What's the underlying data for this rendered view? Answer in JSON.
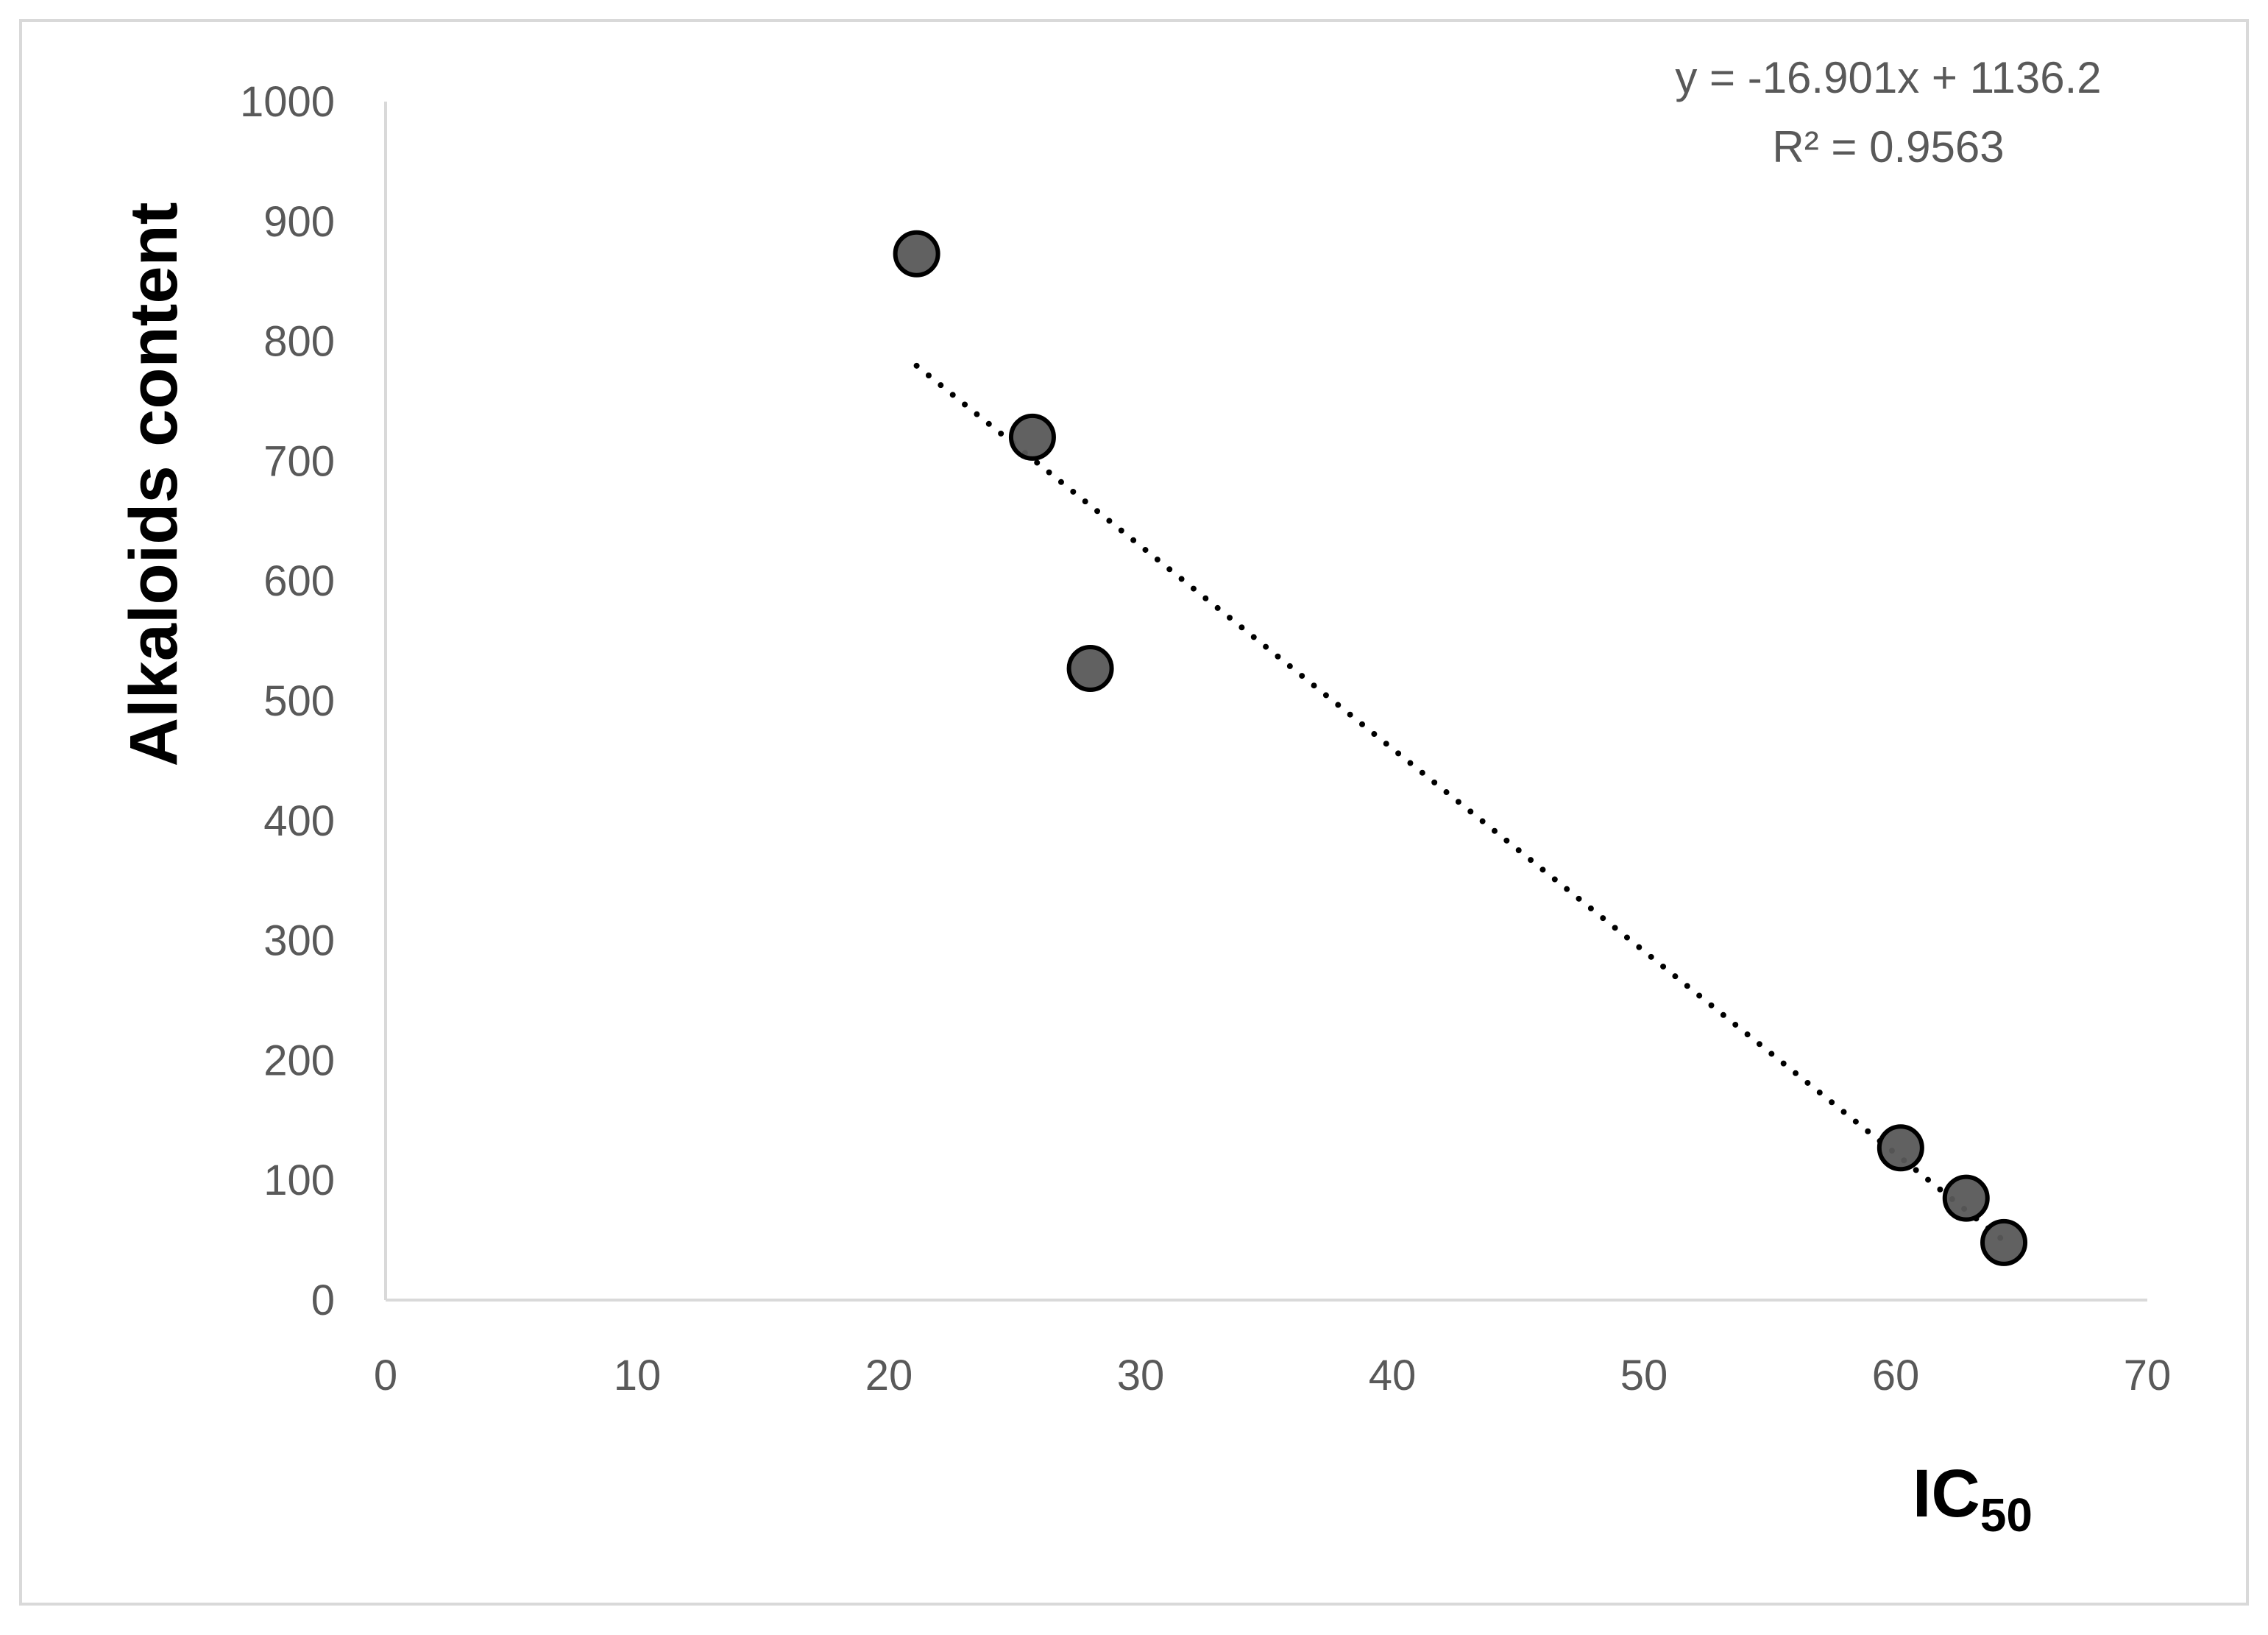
{
  "chart_data": {
    "type": "scatter",
    "xlabel_main": "IC",
    "xlabel_sub": "50",
    "ylabel": "Alkaloids content",
    "xlim": [
      0,
      70
    ],
    "ylim": [
      0,
      1000
    ],
    "xticks": [
      0,
      10,
      20,
      30,
      40,
      50,
      60,
      70
    ],
    "yticks": [
      0,
      100,
      200,
      300,
      400,
      500,
      600,
      700,
      800,
      900,
      1000
    ],
    "grid": false,
    "points": [
      {
        "x": 21.1,
        "y": 873
      },
      {
        "x": 25.7,
        "y": 720
      },
      {
        "x": 28.0,
        "y": 527
      },
      {
        "x": 60.2,
        "y": 127
      },
      {
        "x": 62.8,
        "y": 85
      },
      {
        "x": 64.3,
        "y": 48
      }
    ],
    "trendline": {
      "type": "linear",
      "slope": -16.901,
      "intercept": 1136.2,
      "x_range": [
        21.1,
        64.3
      ],
      "style": "dotted",
      "equation_text": "y = -16.901x + 1136.2",
      "r2_text": "R² = 0.9563"
    },
    "colors": {
      "marker_fill": "#595959",
      "marker_stroke": "#000000",
      "axis": "#d9d9d9",
      "tick_text": "#595959",
      "trendline": "#000000"
    }
  }
}
